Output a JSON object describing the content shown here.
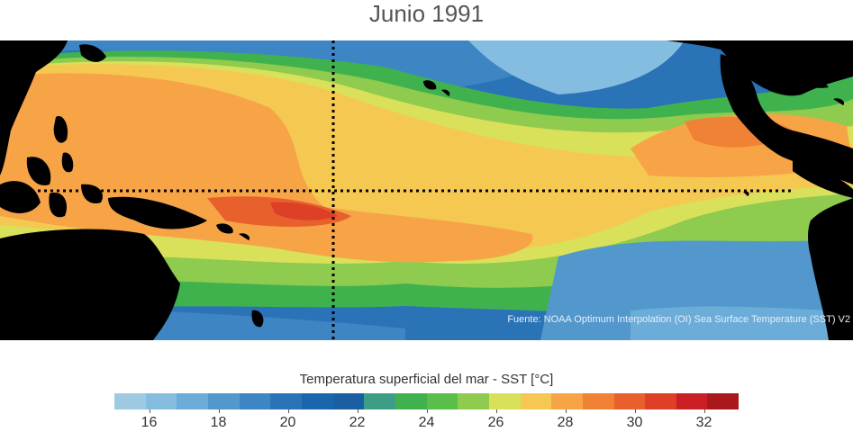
{
  "title": "Junio 1991",
  "source_note": "Fuente: NOAA Optimum Interpolation (OI) Sea Surface Temperature (SST) V2",
  "colorbar": {
    "title": "Temperatura superficial del mar - SST  [°C]",
    "min": 15,
    "max": 33,
    "colors": [
      "#9ecae1",
      "#85bde0",
      "#6badd8",
      "#5298cc",
      "#3d86c3",
      "#2a73b7",
      "#1a66ad",
      "#1b5fa3",
      "#3e9e85",
      "#3fb24e",
      "#5abf4a",
      "#8ecb4e",
      "#d9e05a",
      "#f5c852",
      "#f7a447",
      "#f08235",
      "#e8602c",
      "#dd4026",
      "#cc1f23",
      "#a8181c"
    ],
    "ticks": [
      16,
      18,
      20,
      22,
      24,
      26,
      28,
      30,
      32
    ]
  },
  "map": {
    "equator_line": "dotted",
    "dateline_line": "dotted",
    "land_color": "#000000"
  }
}
